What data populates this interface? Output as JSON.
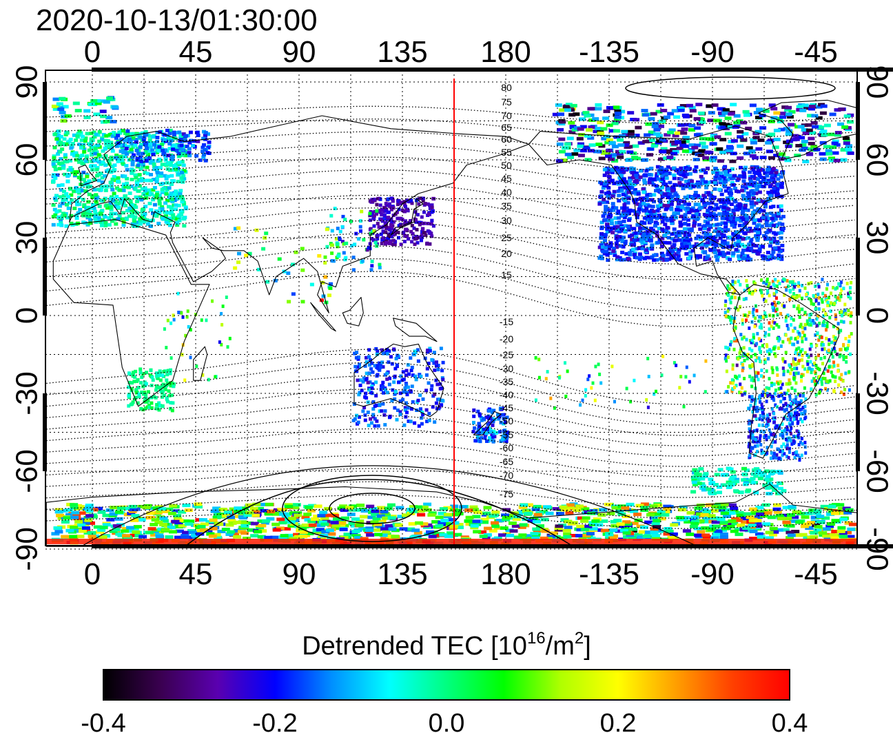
{
  "title": "2020-10-13/01:30:00",
  "map": {
    "lon_ticks_top": [
      "0",
      "45",
      "90",
      "135",
      "180",
      "-135",
      "-90",
      "-45"
    ],
    "lon_ticks_bottom": [
      "0",
      "45",
      "90",
      "135",
      "180",
      "-135",
      "-90",
      "-45"
    ],
    "lat_ticks_left": [
      "90",
      "60",
      "30",
      "0",
      "-30",
      "-60",
      "-90"
    ],
    "lat_ticks_right": [
      "90",
      "60",
      "30",
      "0",
      "-30",
      "-60",
      "-90"
    ],
    "marker_line_longitude": 157.5,
    "marker_line_color": "#ff0000",
    "contour_labels_north": [
      "80",
      "75",
      "70",
      "65",
      "60",
      "55",
      "50",
      "45",
      "40",
      "35",
      "30",
      "25",
      "20",
      "15"
    ],
    "contour_labels_south": [
      "-15",
      "-20",
      "-25",
      "-30",
      "-35",
      "-40",
      "-45",
      "-50",
      "-55",
      "-60",
      "-65",
      "-70",
      "-75"
    ]
  },
  "colorbar": {
    "label_main": "Detrended TEC  [10",
    "label_sup1": "16",
    "label_mid": "/m",
    "label_sup2": "2",
    "label_end": "]",
    "min": -0.4,
    "max": 0.4,
    "tick_labels": [
      "-0.4",
      "-0.2",
      "0.0",
      "0.2",
      "0.4"
    ],
    "colors": [
      "#000000",
      "#3a0050",
      "#5a00b0",
      "#0000ff",
      "#0090ff",
      "#00ffff",
      "#00ff80",
      "#00ff00",
      "#b0ff00",
      "#ffff00",
      "#ffa000",
      "#ff4000",
      "#ff0000"
    ]
  }
}
